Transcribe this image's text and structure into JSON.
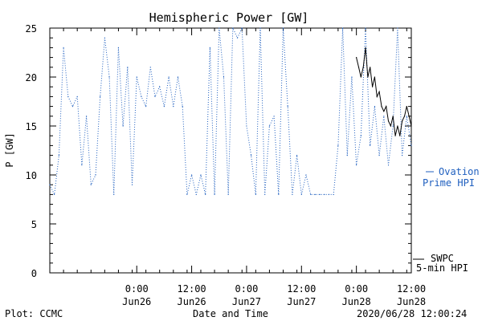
{
  "chart_data": {
    "type": "line",
    "title": "Hemispheric Power [GW]",
    "ylabel": "P [GW]",
    "xlabel": "Date and Time",
    "ylim": [
      0,
      25
    ],
    "yticks": [
      0,
      5,
      10,
      15,
      20,
      25
    ],
    "xlim": [
      "2020-06-25 05:00",
      "2020-06-28 12:00"
    ],
    "xticks": [
      {
        "t": "2020-06-26 00:00",
        "line1": "0:00",
        "line2": "Jun26"
      },
      {
        "t": "2020-06-26 12:00",
        "line1": "12:00",
        "line2": "Jun26"
      },
      {
        "t": "2020-06-27 00:00",
        "line1": "0:00",
        "line2": "Jun27"
      },
      {
        "t": "2020-06-27 12:00",
        "line1": "12:00",
        "line2": "Jun27"
      },
      {
        "t": "2020-06-28 00:00",
        "line1": "0:00",
        "line2": "Jun28"
      },
      {
        "t": "2020-06-28 12:00",
        "line1": "12:00",
        "line2": "Jun28"
      }
    ],
    "series": [
      {
        "name": "Ovation Prime HPI",
        "style": "dotted",
        "color": "#1f5fbf",
        "x": [
          "2020-06-25 05:00",
          "2020-06-25 06:00",
          "2020-06-25 07:00",
          "2020-06-25 08:00",
          "2020-06-25 09:00",
          "2020-06-25 10:00",
          "2020-06-25 11:00",
          "2020-06-25 12:00",
          "2020-06-25 13:00",
          "2020-06-25 14:00",
          "2020-06-25 15:00",
          "2020-06-25 16:00",
          "2020-06-25 17:00",
          "2020-06-25 18:00",
          "2020-06-25 19:00",
          "2020-06-25 20:00",
          "2020-06-25 21:00",
          "2020-06-25 22:00",
          "2020-06-25 23:00",
          "2020-06-26 00:00",
          "2020-06-26 01:00",
          "2020-06-26 02:00",
          "2020-06-26 03:00",
          "2020-06-26 04:00",
          "2020-06-26 05:00",
          "2020-06-26 06:00",
          "2020-06-26 07:00",
          "2020-06-26 08:00",
          "2020-06-26 09:00",
          "2020-06-26 10:00",
          "2020-06-26 11:00",
          "2020-06-26 12:00",
          "2020-06-26 13:00",
          "2020-06-26 14:00",
          "2020-06-26 15:00",
          "2020-06-26 16:00",
          "2020-06-26 17:00",
          "2020-06-26 18:00",
          "2020-06-26 19:00",
          "2020-06-26 20:00",
          "2020-06-26 21:00",
          "2020-06-26 22:00",
          "2020-06-26 23:00",
          "2020-06-27 00:00",
          "2020-06-27 01:00",
          "2020-06-27 02:00",
          "2020-06-27 03:00",
          "2020-06-27 04:00",
          "2020-06-27 05:00",
          "2020-06-27 06:00",
          "2020-06-27 07:00",
          "2020-06-27 08:00",
          "2020-06-27 09:00",
          "2020-06-27 10:00",
          "2020-06-27 11:00",
          "2020-06-27 12:00",
          "2020-06-27 13:00",
          "2020-06-27 14:00",
          "2020-06-27 15:00",
          "2020-06-27 16:00",
          "2020-06-27 17:00",
          "2020-06-27 18:00",
          "2020-06-27 19:00",
          "2020-06-27 20:00",
          "2020-06-27 21:00",
          "2020-06-27 22:00",
          "2020-06-27 23:00",
          "2020-06-28 00:00",
          "2020-06-28 01:00",
          "2020-06-28 02:00",
          "2020-06-28 03:00",
          "2020-06-28 04:00",
          "2020-06-28 05:00",
          "2020-06-28 06:00",
          "2020-06-28 07:00",
          "2020-06-28 08:00",
          "2020-06-28 09:00",
          "2020-06-28 10:00",
          "2020-06-28 11:00",
          "2020-06-28 12:00"
        ],
        "values": [
          9,
          8,
          12,
          23,
          18,
          17,
          18,
          11,
          16,
          9,
          10,
          18,
          24,
          20,
          8,
          23,
          15,
          21,
          9,
          20,
          18,
          17,
          21,
          18,
          19,
          17,
          20,
          17,
          20,
          17,
          8,
          10,
          8,
          10,
          8,
          23,
          8,
          25,
          20,
          8,
          25,
          24,
          25,
          15,
          12,
          8,
          25,
          8,
          15,
          16,
          8,
          25,
          17,
          8,
          12,
          8,
          10,
          8,
          8,
          8,
          8,
          8,
          8,
          13,
          25,
          12,
          20,
          11,
          14,
          25,
          13,
          17,
          12,
          16,
          11,
          15,
          25,
          12,
          16,
          13
        ]
      },
      {
        "name": "SWPC 5-min HPI",
        "style": "solid",
        "color": "#000000",
        "x": [
          "2020-06-28 00:00",
          "2020-06-28 00:30",
          "2020-06-28 01:00",
          "2020-06-28 01:30",
          "2020-06-28 02:00",
          "2020-06-28 02:30",
          "2020-06-28 03:00",
          "2020-06-28 03:30",
          "2020-06-28 04:00",
          "2020-06-28 04:30",
          "2020-06-28 05:00",
          "2020-06-28 05:30",
          "2020-06-28 06:00",
          "2020-06-28 06:30",
          "2020-06-28 07:00",
          "2020-06-28 07:30",
          "2020-06-28 08:00",
          "2020-06-28 08:30",
          "2020-06-28 09:00",
          "2020-06-28 09:30",
          "2020-06-28 10:00",
          "2020-06-28 10:30",
          "2020-06-28 11:00",
          "2020-06-28 11:30",
          "2020-06-28 12:00"
        ],
        "values": [
          22,
          21,
          20,
          21,
          23,
          20,
          21,
          19,
          20,
          18,
          18.5,
          17,
          16.5,
          17,
          15.5,
          15,
          16,
          14,
          15,
          14,
          15.5,
          16,
          17,
          16,
          15
        ]
      }
    ],
    "legend": [
      {
        "line1": "Ovation",
        "line2": "Prime HPI"
      },
      {
        "line1": "SWPC",
        "line2": "5-min HPI"
      }
    ],
    "grid": false
  },
  "footer": {
    "plot_credit": "Plot: CCMC",
    "timestamp": "2020/06/28 12:00:24"
  }
}
